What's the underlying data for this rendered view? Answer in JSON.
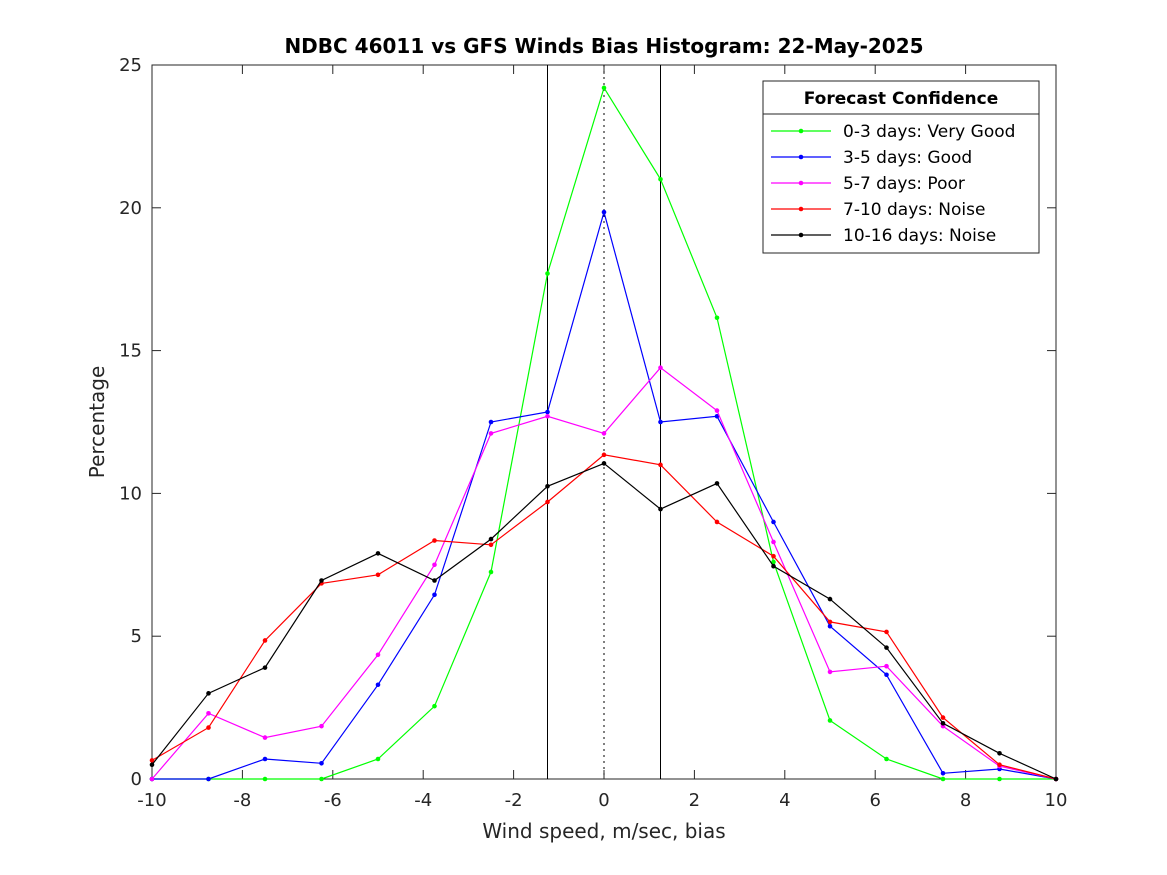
{
  "chart_data": {
    "type": "line",
    "title": "NDBC 46011 vs GFS Winds Bias Histogram: 22-May-2025",
    "xlabel": "Wind speed, m/sec, bias",
    "ylabel": "Percentage",
    "xlim": [
      -10,
      10
    ],
    "ylim": [
      0,
      25
    ],
    "xticks": [
      -10,
      -8,
      -6,
      -4,
      -2,
      0,
      2,
      4,
      6,
      8,
      10
    ],
    "yticks": [
      0,
      5,
      10,
      15,
      20,
      25
    ],
    "grid": false,
    "legend": {
      "title": "Forecast Confidence",
      "position": "top-right"
    },
    "vertical_lines": [
      {
        "x": -1.25,
        "style": "solid"
      },
      {
        "x": 0,
        "style": "dotted"
      },
      {
        "x": 1.25,
        "style": "solid"
      }
    ],
    "x": [
      -10,
      -8.75,
      -7.5,
      -6.25,
      -5,
      -3.75,
      -2.5,
      -1.25,
      0,
      1.25,
      2.5,
      3.75,
      5,
      6.25,
      7.5,
      8.75,
      10
    ],
    "series": [
      {
        "name": "0-3 days: Very Good",
        "color": "#00ff00",
        "values": [
          0,
          0,
          0,
          0,
          0.7,
          2.55,
          7.25,
          17.7,
          24.2,
          21.0,
          16.15,
          7.6,
          2.05,
          0.7,
          0,
          0,
          0
        ]
      },
      {
        "name": "3-5 days: Good",
        "color": "#0000ff",
        "values": [
          0,
          0,
          0.7,
          0.55,
          3.3,
          6.45,
          12.5,
          12.85,
          19.85,
          12.5,
          12.7,
          9.0,
          5.35,
          3.65,
          0.2,
          0.35,
          0
        ]
      },
      {
        "name": "5-7 days: Poor",
        "color": "#ff00ff",
        "values": [
          0,
          2.3,
          1.45,
          1.85,
          4.35,
          7.5,
          12.1,
          12.7,
          12.1,
          14.4,
          12.9,
          8.3,
          3.75,
          3.95,
          1.85,
          0.45,
          0
        ]
      },
      {
        "name": "7-10 days: Noise",
        "color": "#ff0000",
        "values": [
          0.65,
          1.8,
          4.85,
          6.85,
          7.15,
          8.35,
          8.2,
          9.7,
          11.35,
          11.0,
          9.0,
          7.8,
          5.5,
          5.15,
          2.15,
          0.5,
          0
        ]
      },
      {
        "name": "10-16 days: Noise",
        "color": "#000000",
        "values": [
          0.5,
          3.0,
          3.9,
          6.95,
          7.9,
          6.95,
          8.4,
          10.25,
          11.05,
          9.45,
          10.35,
          7.45,
          6.3,
          4.6,
          1.95,
          0.9,
          0
        ]
      }
    ]
  }
}
